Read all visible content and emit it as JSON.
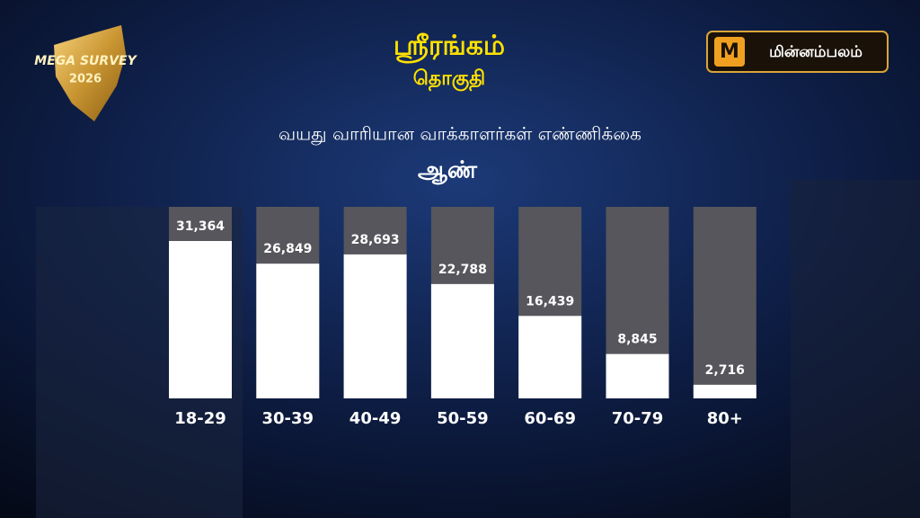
{
  "logo": {
    "line1": "MEGA SURVEY",
    "line2": "2026"
  },
  "brand": "மின்னம்பலம்",
  "chart_data": {
    "type": "bar",
    "title": "ஸ்ரீரங்கம்",
    "subtitle": "தொகுதி",
    "chart_title": "வயது வாரியான வாக்காளர்கள் எண்ணிக்கை",
    "series_label": "ஆண்",
    "categories": [
      "18-29",
      "30-39",
      "40-49",
      "50-59",
      "60-69",
      "70-79",
      "80+"
    ],
    "values": [
      31364,
      26849,
      28693,
      22788,
      16439,
      8845,
      2716
    ],
    "value_labels": [
      "31,364",
      "26,849",
      "28,693",
      "22,788",
      "16,439",
      "8,845",
      "2,716"
    ],
    "color": "#ffffff",
    "track_color": "#56565c"
  }
}
